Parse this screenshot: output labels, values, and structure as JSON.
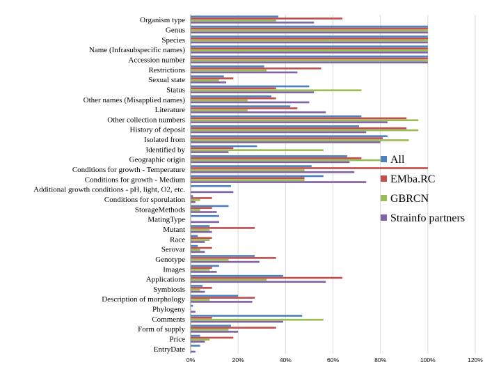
{
  "chart_data": {
    "type": "bar",
    "orientation": "horizontal",
    "title": "",
    "xlabel": "",
    "ylabel": "",
    "xlim": [
      0,
      120
    ],
    "x_ticks": [
      0,
      20,
      40,
      60,
      80,
      100,
      120
    ],
    "x_tick_labels": [
      "0%",
      "20%",
      "40%",
      "60%",
      "80%",
      "100%",
      "120%"
    ],
    "grid": true,
    "legend_position": "right",
    "categories": [
      "Organism type",
      "Genus",
      "Species",
      "Name (Infrasubspecific names)",
      "Accession number",
      "Restrictions",
      "Sexual state",
      "Status",
      "Other names (Misapplied names)",
      "Literature",
      "Other collection numbers",
      "History of deposit",
      "Isolated from",
      "Identified by",
      "Geographic origin",
      "Conditions for growth - Temperature",
      "Conditions for growth - Medium",
      "Additional growth conditions - pH, light, O2, etc.",
      "Conditions for sporulation",
      "StorageMethods",
      "MatingType",
      "Mutant",
      "Race",
      "Serovar",
      "Genotype",
      "Images",
      "Applications",
      "Symbiosis",
      "Description of morphology",
      "Phylogeny",
      "Comments",
      "Form of supply",
      "Price",
      "EntryDate"
    ],
    "series": [
      {
        "name": "All",
        "color": "#4F81BD",
        "values": [
          37,
          100,
          100,
          100,
          100,
          31,
          14,
          50,
          34,
          42,
          72,
          71,
          83,
          28,
          66,
          51,
          56,
          17,
          1,
          16,
          12,
          8,
          3,
          3,
          27,
          12,
          39,
          5,
          20,
          1,
          47,
          17,
          4,
          4
        ]
      },
      {
        "name": "EMba.RC",
        "color": "#C0504D",
        "values": [
          64,
          100,
          100,
          100,
          100,
          55,
          18,
          36,
          36,
          45,
          91,
          91,
          81,
          18,
          72,
          100,
          48,
          0,
          9,
          9,
          0,
          27,
          9,
          9,
          36,
          9,
          64,
          9,
          27,
          0,
          9,
          36,
          18,
          0
        ]
      },
      {
        "name": "GBRCN",
        "color": "#9BBB59",
        "values": [
          36,
          100,
          100,
          100,
          100,
          32,
          12,
          72,
          24,
          24,
          96,
          96,
          92,
          56,
          80,
          48,
          48,
          0,
          4,
          4,
          0,
          8,
          8,
          4,
          16,
          8,
          32,
          4,
          8,
          0,
          56,
          16,
          8,
          0
        ]
      },
      {
        "name": "Strainfo partners",
        "color": "#8064A2",
        "values": [
          52,
          100,
          100,
          100,
          100,
          45,
          15,
          52,
          50,
          57,
          83,
          74,
          80,
          16,
          67,
          69,
          74,
          18,
          2,
          11,
          12,
          9,
          6,
          6,
          29,
          11,
          57,
          6,
          26,
          2,
          39,
          20,
          6,
          2
        ]
      }
    ]
  }
}
